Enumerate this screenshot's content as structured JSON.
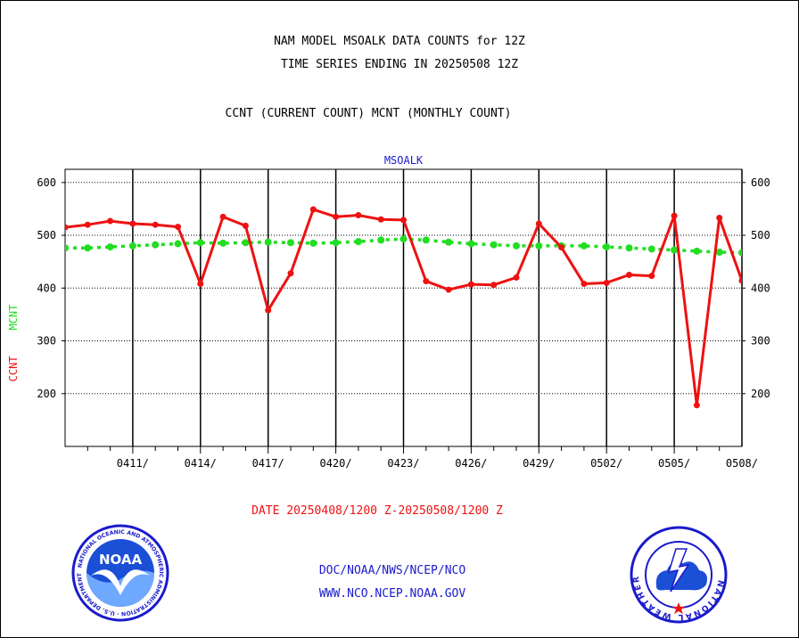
{
  "header": {
    "line1": "NAM MODEL MSOALK DATA COUNTS for 12Z",
    "line2": "TIME SERIES ENDING IN 20250508 12Z",
    "line3": "CCNT (CURRENT COUNT) MCNT (MONTHLY COUNT)"
  },
  "footer": {
    "org": "DOC/NOAA/NWS/NCEP/NCO",
    "url": "WWW.NCO.NCEP.NOAA.GOV"
  },
  "logos": {
    "noaa": {
      "inner": "NOAA",
      "ring": "NATIONAL OCEANIC AND ATMOSPHERIC ADMINISTRATION · U.S. DEPARTMENT OF COMMERCE"
    },
    "nws": {
      "ring": "NATIONAL WEATHER SERVICE"
    }
  },
  "colors": {
    "ccnt": "#ee1111",
    "mcnt": "#22dd22",
    "panel_title": "#1a1acc",
    "date": "#ee1111",
    "footer": "#1a1acc"
  },
  "chart_data": {
    "type": "line",
    "title": "MSOALK",
    "ylabel_ccnt": "CCNT",
    "ylabel_mcnt": "MCNT",
    "xlabel": "DATE 20250408/1200 Z-20250508/1200 Z",
    "ylim": [
      100,
      625
    ],
    "yticks": [
      200,
      300,
      400,
      500,
      600
    ],
    "x_start": "2025-04-08",
    "x_end": "2025-05-08",
    "xticks": [
      {
        "label": "0411/",
        "day": 3
      },
      {
        "label": "0414/",
        "day": 6
      },
      {
        "label": "0417/",
        "day": 9
      },
      {
        "label": "0420/",
        "day": 12
      },
      {
        "label": "0423/",
        "day": 15
      },
      {
        "label": "0426/",
        "day": 18
      },
      {
        "label": "0429/",
        "day": 21
      },
      {
        "label": "0502/",
        "day": 24
      },
      {
        "label": "0505/",
        "day": 27
      },
      {
        "label": "0508/",
        "day": 30
      }
    ],
    "grid": true,
    "series": [
      {
        "name": "CCNT",
        "values": [
          515,
          520,
          527,
          522,
          520,
          516,
          408,
          535,
          518,
          358,
          428,
          549,
          535,
          538,
          530,
          529,
          413,
          397,
          407,
          406,
          420,
          522,
          477,
          408,
          410,
          425,
          423,
          537,
          178,
          533,
          414
        ]
      },
      {
        "name": "MCNT",
        "values": [
          476,
          476,
          478,
          480,
          482,
          484,
          486,
          485,
          486,
          487,
          486,
          485,
          486,
          488,
          491,
          493,
          491,
          487,
          484,
          482,
          480,
          480,
          480,
          480,
          478,
          476,
          474,
          472,
          470,
          468,
          467
        ]
      }
    ]
  }
}
